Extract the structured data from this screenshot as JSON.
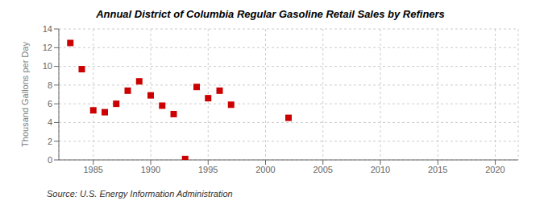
{
  "chart_data": {
    "type": "scatter",
    "title": "Annual District of Columbia Regular Gasoline Retail Sales by Refiners",
    "y_label": "Thousand Gallons per Day",
    "annotations": [
      "Source: U.S. Energy Information Administration"
    ],
    "x": [
      1983,
      1984,
      1985,
      1986,
      1987,
      1988,
      1989,
      1990,
      1991,
      1992,
      1993,
      1994,
      1995,
      1996,
      1997,
      2002
    ],
    "values": [
      12.5,
      9.7,
      5.3,
      5.1,
      6.0,
      7.4,
      8.4,
      6.9,
      5.8,
      4.9,
      0.1,
      7.8,
      6.6,
      7.4,
      5.9,
      4.5
    ],
    "color": "#cc0000",
    "marker": "square",
    "xlim": [
      1982,
      2022
    ],
    "ylim": [
      0,
      14
    ],
    "xticks": [
      1985,
      1990,
      1995,
      2000,
      2005,
      2010,
      2015,
      2020
    ],
    "yticks": [
      0,
      2,
      4,
      6,
      8,
      10,
      12,
      14
    ],
    "grid": true
  }
}
